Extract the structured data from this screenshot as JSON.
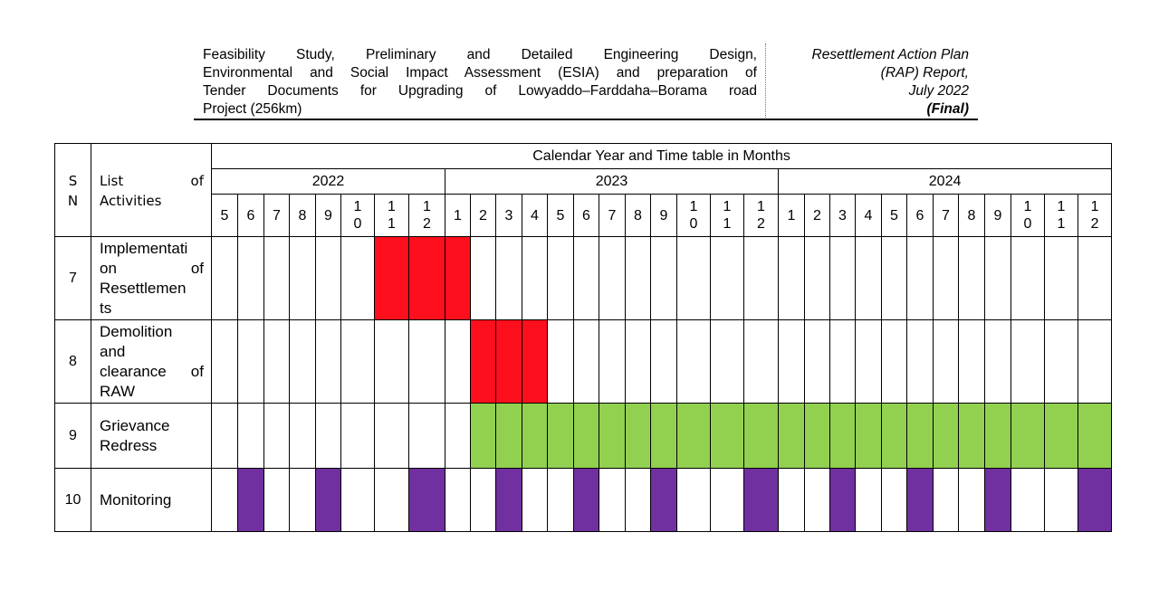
{
  "header": {
    "left_lines": [
      "Feasibility Study, Preliminary and Detailed Engineering Design,",
      "Environmental and Social Impact Assessment (ESIA) and preparation of",
      "Tender Documents for Upgrading of Lowyaddo–Farddaha–Borama road",
      "Project (256km)"
    ],
    "right_lines": [
      "Resettlement Action Plan",
      "(RAP) Report,",
      "July 2022"
    ],
    "right_final": "(Final)"
  },
  "table": {
    "sn_header": "S N",
    "activity_header": "List of Activities",
    "calendar_title": "Calendar Year and Time table in Months",
    "years": [
      {
        "label": "2022",
        "months": [
          "5",
          "6",
          "7",
          "8",
          "9",
          "10",
          "11",
          "12"
        ]
      },
      {
        "label": "2023",
        "months": [
          "1",
          "2",
          "3",
          "4",
          "5",
          "6",
          "7",
          "8",
          "9",
          "10",
          "11",
          "12"
        ]
      },
      {
        "label": "2024",
        "months": [
          "1",
          "2",
          "3",
          "4",
          "5",
          "6",
          "7",
          "8",
          "9",
          "10",
          "11",
          "12"
        ]
      }
    ],
    "legend_colors": {
      "red": "#fe0f1d",
      "green": "#92d050",
      "purple": "#7030a0"
    },
    "rows": [
      {
        "sn": "7",
        "activity": "Implementation of Resettlements",
        "fills": [
          0,
          0,
          0,
          0,
          0,
          0,
          "red",
          "red",
          "red",
          0,
          0,
          0,
          0,
          0,
          0,
          0,
          0,
          0,
          0,
          0,
          0,
          0,
          0,
          0,
          0,
          0,
          0,
          0,
          0,
          0,
          0,
          0
        ]
      },
      {
        "sn": "8",
        "activity": "Demolition and clearance of RAW",
        "fills": [
          0,
          0,
          0,
          0,
          0,
          0,
          0,
          0,
          0,
          "red",
          "red",
          "red",
          0,
          0,
          0,
          0,
          0,
          0,
          0,
          0,
          0,
          0,
          0,
          0,
          0,
          0,
          0,
          0,
          0,
          0,
          0,
          0
        ]
      },
      {
        "sn": "9",
        "activity": "Grievance Redress",
        "fills": [
          0,
          0,
          0,
          0,
          0,
          0,
          0,
          0,
          0,
          "green",
          "green",
          "green",
          "green",
          "green",
          "green",
          "green",
          "green",
          "green",
          "green",
          "green",
          "green",
          "green",
          "green",
          "green",
          "green",
          "green",
          "green",
          "green",
          "green",
          "green",
          "green",
          "green"
        ]
      },
      {
        "sn": "10",
        "activity": "Monitoring",
        "fills": [
          0,
          "purple",
          0,
          0,
          "purple",
          0,
          0,
          "purple",
          0,
          0,
          "purple",
          0,
          0,
          "purple",
          0,
          0,
          "purple",
          0,
          0,
          "purple",
          0,
          0,
          "purple",
          0,
          0,
          "purple",
          0,
          0,
          "purple",
          0,
          0,
          "purple"
        ]
      }
    ]
  }
}
